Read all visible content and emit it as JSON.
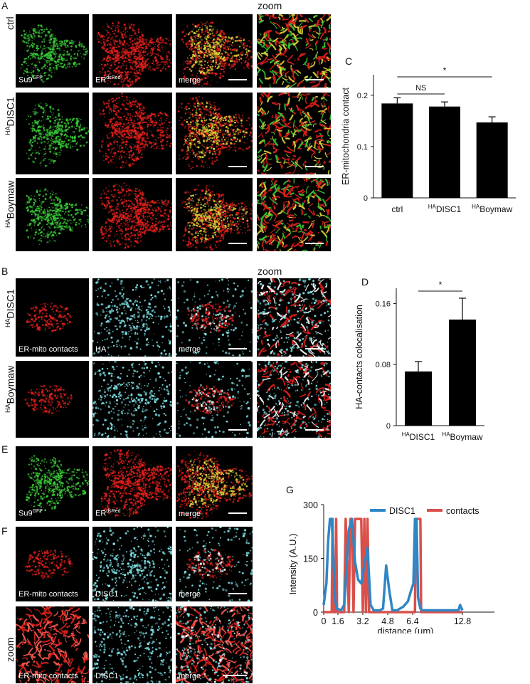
{
  "panels": {
    "A": "A",
    "B": "B",
    "C": "C",
    "D": "D",
    "E": "E",
    "F": "F",
    "G": "G"
  },
  "zoom_title": "zoom",
  "row_labels": {
    "ctrl": "ctrl",
    "ha_prefix": "HA",
    "disc1": "DISC1",
    "boymaw": "Boymaw",
    "zoom": "zoom"
  },
  "image_labels": {
    "su9": "Su9",
    "su9_sup": "GFP",
    "er": "ER",
    "er_sup": "dsRed",
    "merge": "merge",
    "contacts": "ER-mito contacts",
    "ha": "HA",
    "disc1": "DISC1"
  },
  "colors": {
    "green": "#39c936",
    "red": "#e0201c",
    "cyan": "#7fe3e8",
    "yellow": "#d9d63a",
    "line_disc1": "#2f86c5",
    "line_contacts": "#d9504b"
  },
  "chart_data": [
    {
      "panel": "C",
      "type": "bar",
      "ylabel": "ER-mitochondria contact",
      "categories": [
        "ctrl",
        "DISC1",
        "Boymaw"
      ],
      "category_prefix": [
        "",
        "HA",
        "HA"
      ],
      "values": [
        0.184,
        0.178,
        0.147
      ],
      "errors": [
        0.011,
        0.009,
        0.011
      ],
      "ylim": [
        0,
        0.24
      ],
      "yticks": [
        0,
        0.1,
        0.2
      ],
      "ytick_labels": [
        "0",
        "0.1",
        "0.2"
      ],
      "annotations": [
        {
          "text": "*",
          "from": 0,
          "to": 2
        },
        {
          "text": "NS",
          "from": 0,
          "to": 1
        }
      ]
    },
    {
      "panel": "D",
      "type": "bar",
      "ylabel": "HA-contacts colocalisation",
      "categories": [
        "DISC1",
        "Boymaw"
      ],
      "category_prefix": [
        "HA",
        "HA"
      ],
      "values": [
        0.071,
        0.139
      ],
      "errors": [
        0.013,
        0.028
      ],
      "ylim": [
        0,
        0.18
      ],
      "yticks": [
        0,
        0.08,
        0.16
      ],
      "ytick_labels": [
        "0",
        "0.08",
        "0.16"
      ],
      "annotations": [
        {
          "text": "*",
          "from": 0,
          "to": 1
        }
      ]
    },
    {
      "panel": "G",
      "type": "line",
      "xlabel": "distance (μm)",
      "ylabel": "Intensity (A.U.)",
      "xlim": [
        0,
        13.2
      ],
      "ylim": [
        0,
        300
      ],
      "xticks": [
        0,
        1.6,
        3.2,
        4.8,
        6.4,
        12.8
      ],
      "xtick_labels": [
        "0",
        "1.6",
        "3.2",
        "4.8",
        "6.4",
        "12.8"
      ],
      "yticks": [
        0,
        150,
        300
      ],
      "ytick_labels": [
        "0",
        "150",
        "300"
      ],
      "series": [
        {
          "name": "DISC1",
          "x": [
            0,
            0.3,
            0.5,
            0.7,
            0.9,
            1.1,
            1.3,
            1.5,
            1.8,
            2.0,
            2.3,
            2.5,
            2.7,
            2.9,
            3.1,
            3.3,
            3.5,
            3.7,
            3.9,
            4.1,
            4.3,
            4.5,
            4.7,
            4.9,
            5.1,
            5.4,
            5.8,
            6.1,
            6.3,
            6.5,
            6.7,
            6.9,
            7.1,
            7.4,
            7.7,
            8.0,
            8.4,
            8.8,
            9.2,
            9.6,
            10.0,
            10.4,
            10.8,
            11.2,
            11.6,
            12.0,
            12.3,
            12.5,
            12.8
          ],
          "y": [
            20,
            80,
            200,
            260,
            260,
            140,
            30,
            10,
            5,
            20,
            230,
            260,
            140,
            90,
            80,
            130,
            180,
            20,
            5,
            5,
            5,
            10,
            130,
            60,
            5,
            5,
            15,
            30,
            60,
            80,
            260,
            260,
            40,
            10,
            5,
            5,
            5,
            5,
            5,
            5,
            5,
            5,
            5,
            5,
            5,
            5,
            5,
            20,
            5
          ]
        },
        {
          "name": "contacts",
          "x": [
            0,
            0.9,
            1.0,
            1.1,
            1.3,
            1.4,
            1.5,
            2.0,
            2.1,
            2.3,
            2.4,
            2.5,
            2.6,
            2.7,
            3.1,
            3.2,
            3.3,
            3.4,
            3.5,
            3.6,
            3.7,
            3.8,
            3.9,
            4.0,
            5.0,
            6.7,
            6.8,
            6.9,
            7.4,
            7.5,
            12.8
          ],
          "y": [
            0,
            0,
            260,
            0,
            0,
            260,
            0,
            0,
            260,
            0,
            260,
            260,
            0,
            260,
            260,
            0,
            260,
            0,
            260,
            0,
            0,
            0,
            0,
            0,
            0,
            0,
            260,
            260,
            260,
            0,
            0
          ]
        }
      ]
    }
  ]
}
